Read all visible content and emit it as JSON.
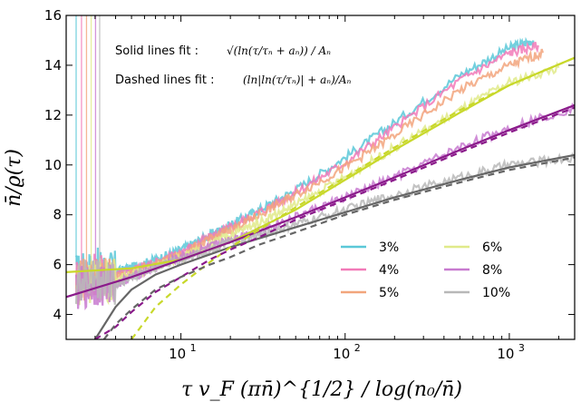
{
  "chart_data": {
    "type": "line",
    "xlabel": "τ v_F (πn̄)^{1/2} / log(n₀/n̄)",
    "ylabel": "n̄/ϱ(τ)",
    "xscale": "log",
    "xlim": [
      2,
      2500
    ],
    "ylim": [
      3,
      16
    ],
    "xticks": [
      {
        "value": 10,
        "label": "10"
      },
      {
        "value": 100,
        "label": "10"
      },
      {
        "value": 1000,
        "label": "10"
      }
    ],
    "xtick_exponents": [
      "1",
      "2",
      "3"
    ],
    "yticks": [
      4,
      6,
      8,
      10,
      12,
      14,
      16
    ],
    "grid": false,
    "legend_position": "lower-right",
    "annotations": [
      {
        "label": "Solid  lines fit :",
        "formula": "√(ln(τ/τₙ + aₙ)) / Aₙ"
      },
      {
        "label": "Dashed lines fit :",
        "formula": "(ln|ln(τ/τₙ)| + aₙ)/Aₙ"
      }
    ],
    "series": [
      {
        "name": "3%",
        "color": "#5bc8d8",
        "style": "data",
        "x": [
          2.3,
          3,
          4,
          5,
          7,
          10,
          15,
          20,
          30,
          50,
          100,
          200,
          500,
          1000,
          1400
        ],
        "y": [
          5.6,
          5.8,
          5.7,
          5.9,
          6.2,
          6.6,
          7.2,
          7.6,
          8.2,
          9.0,
          10.3,
          11.7,
          13.6,
          14.7,
          15.0
        ]
      },
      {
        "name": "4%",
        "color": "#f27ab8",
        "style": "data",
        "x": [
          2.3,
          3,
          4,
          5,
          7,
          10,
          15,
          20,
          30,
          50,
          100,
          200,
          500,
          1000,
          1500
        ],
        "y": [
          5.5,
          5.6,
          5.6,
          5.8,
          6.1,
          6.5,
          7.1,
          7.5,
          8.1,
          8.9,
          10.1,
          11.5,
          13.4,
          14.5,
          14.8
        ]
      },
      {
        "name": "5%",
        "color": "#f2a57c",
        "style": "data",
        "x": [
          2.3,
          3,
          4,
          5,
          7,
          10,
          15,
          20,
          30,
          50,
          100,
          200,
          500,
          1000,
          1600
        ],
        "y": [
          5.3,
          5.5,
          5.5,
          5.7,
          6.0,
          6.4,
          7.0,
          7.4,
          8.0,
          8.8,
          9.9,
          11.2,
          13.0,
          14.0,
          14.5
        ]
      },
      {
        "name": "6%",
        "color": "#e0ea8a",
        "style": "data",
        "x": [
          2.3,
          3,
          4,
          5,
          7,
          10,
          15,
          20,
          30,
          50,
          100,
          200,
          500,
          1000,
          2000
        ],
        "y": [
          5.2,
          5.4,
          5.4,
          5.6,
          5.9,
          6.3,
          6.8,
          7.2,
          7.7,
          8.4,
          9.5,
          10.7,
          12.2,
          13.3,
          13.9
        ]
      },
      {
        "name": "8%",
        "color": "#c87ad0",
        "style": "data",
        "x": [
          2.3,
          3,
          4,
          5,
          7,
          10,
          15,
          20,
          30,
          50,
          100,
          200,
          500,
          1000,
          2500
        ],
        "y": [
          5.0,
          5.2,
          5.2,
          5.5,
          5.9,
          6.3,
          6.7,
          7.0,
          7.4,
          7.9,
          8.7,
          9.5,
          10.7,
          11.5,
          12.3
        ]
      },
      {
        "name": "10%",
        "color": "#b8b8b8",
        "style": "data",
        "x": [
          2.3,
          3,
          4,
          5,
          7,
          10,
          15,
          20,
          30,
          50,
          100,
          200,
          500,
          1000,
          2500
        ],
        "y": [
          5.2,
          5.5,
          5.2,
          5.5,
          5.9,
          6.2,
          6.6,
          6.9,
          7.2,
          7.6,
          8.2,
          8.8,
          9.5,
          10.0,
          10.3
        ]
      }
    ],
    "fit_lines": [
      {
        "series": "6%",
        "color": "#c8d82a",
        "kind": "solid",
        "x": [
          2,
          5,
          10,
          20,
          50,
          100,
          200,
          500,
          1000,
          2500
        ],
        "y": [
          5.7,
          5.85,
          6.2,
          6.9,
          8.2,
          9.4,
          10.6,
          12.1,
          13.2,
          14.3
        ]
      },
      {
        "series": "8%",
        "color": "#8a1a8a",
        "kind": "solid",
        "x": [
          2,
          5,
          10,
          20,
          50,
          100,
          200,
          500,
          1000,
          2500
        ],
        "y": [
          4.7,
          5.5,
          6.2,
          6.9,
          7.9,
          8.7,
          9.5,
          10.6,
          11.4,
          12.4
        ]
      },
      {
        "series": "10%",
        "color": "#666666",
        "kind": "solid",
        "x": [
          3,
          4,
          5,
          7,
          10,
          20,
          50,
          100,
          200,
          500,
          1000,
          2500
        ],
        "y": [
          3.0,
          4.3,
          5.0,
          5.6,
          6.0,
          6.7,
          7.5,
          8.1,
          8.7,
          9.4,
          9.9,
          10.4
        ]
      },
      {
        "series": "6%",
        "color": "#c8d82a",
        "kind": "dashed",
        "x": [
          5,
          7,
          10,
          15,
          20,
          30,
          50,
          100,
          200,
          500,
          1000,
          2500
        ],
        "y": [
          3.0,
          4.3,
          5.2,
          6.1,
          6.7,
          7.4,
          8.3,
          9.5,
          10.7,
          12.2,
          13.2,
          14.3
        ]
      },
      {
        "series": "8%",
        "color": "#8a1a8a",
        "kind": "dashed",
        "x": [
          3,
          4,
          5,
          7,
          10,
          15,
          20,
          30,
          50,
          100,
          200,
          500,
          1000,
          2500
        ],
        "y": [
          3.0,
          3.5,
          4.1,
          4.9,
          5.5,
          6.2,
          6.6,
          7.1,
          7.8,
          8.6,
          9.4,
          10.5,
          11.3,
          12.3
        ]
      },
      {
        "series": "10%",
        "color": "#666666",
        "kind": "dashed",
        "x": [
          3.4,
          4,
          5,
          7,
          10,
          15,
          20,
          30,
          50,
          100,
          200,
          500,
          1000,
          2500
        ],
        "y": [
          3.0,
          3.6,
          4.2,
          5.0,
          5.5,
          6.0,
          6.3,
          6.8,
          7.3,
          8.0,
          8.6,
          9.3,
          9.8,
          10.3
        ]
      }
    ]
  }
}
